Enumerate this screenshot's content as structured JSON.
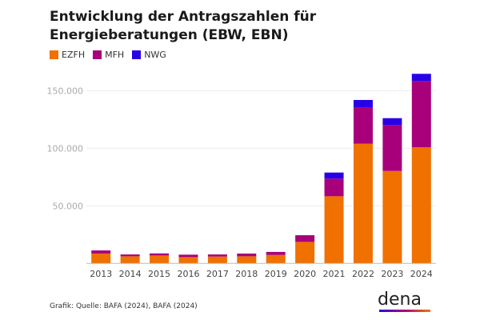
{
  "chart_data": {
    "type": "bar",
    "stacked": true,
    "title": "Entwicklung der Antragszahlen für Energieberatungen (EBW, EBN)",
    "categories": [
      "2013",
      "2014",
      "2015",
      "2016",
      "2017",
      "2018",
      "2019",
      "2020",
      "2021",
      "2022",
      "2023",
      "2024"
    ],
    "series": [
      {
        "name": "EZFH",
        "color": "#f07000",
        "values": [
          8600,
          6200,
          6900,
          5500,
          6000,
          6200,
          7400,
          18700,
          58300,
          104000,
          80300,
          100900
        ]
      },
      {
        "name": "MFH",
        "color": "#a8007a",
        "values": [
          2700,
          1600,
          1800,
          2100,
          1800,
          2400,
          2600,
          5800,
          15300,
          31600,
          39800,
          57400
        ]
      },
      {
        "name": "NWG",
        "color": "#2800e6",
        "values": [
          0,
          0,
          0,
          0,
          0,
          0,
          0,
          0,
          5300,
          6300,
          6000,
          6300
        ]
      }
    ],
    "yticks": [
      "50.000",
      "100.000",
      "150.000"
    ],
    "ytick_values": [
      50000,
      100000,
      150000
    ],
    "ylim": [
      0,
      170000
    ],
    "grid": true,
    "legend_position": "top-left"
  },
  "source": "Grafik: Quelle: BAFA (2024), BAFA (2024)",
  "logo": "dena"
}
